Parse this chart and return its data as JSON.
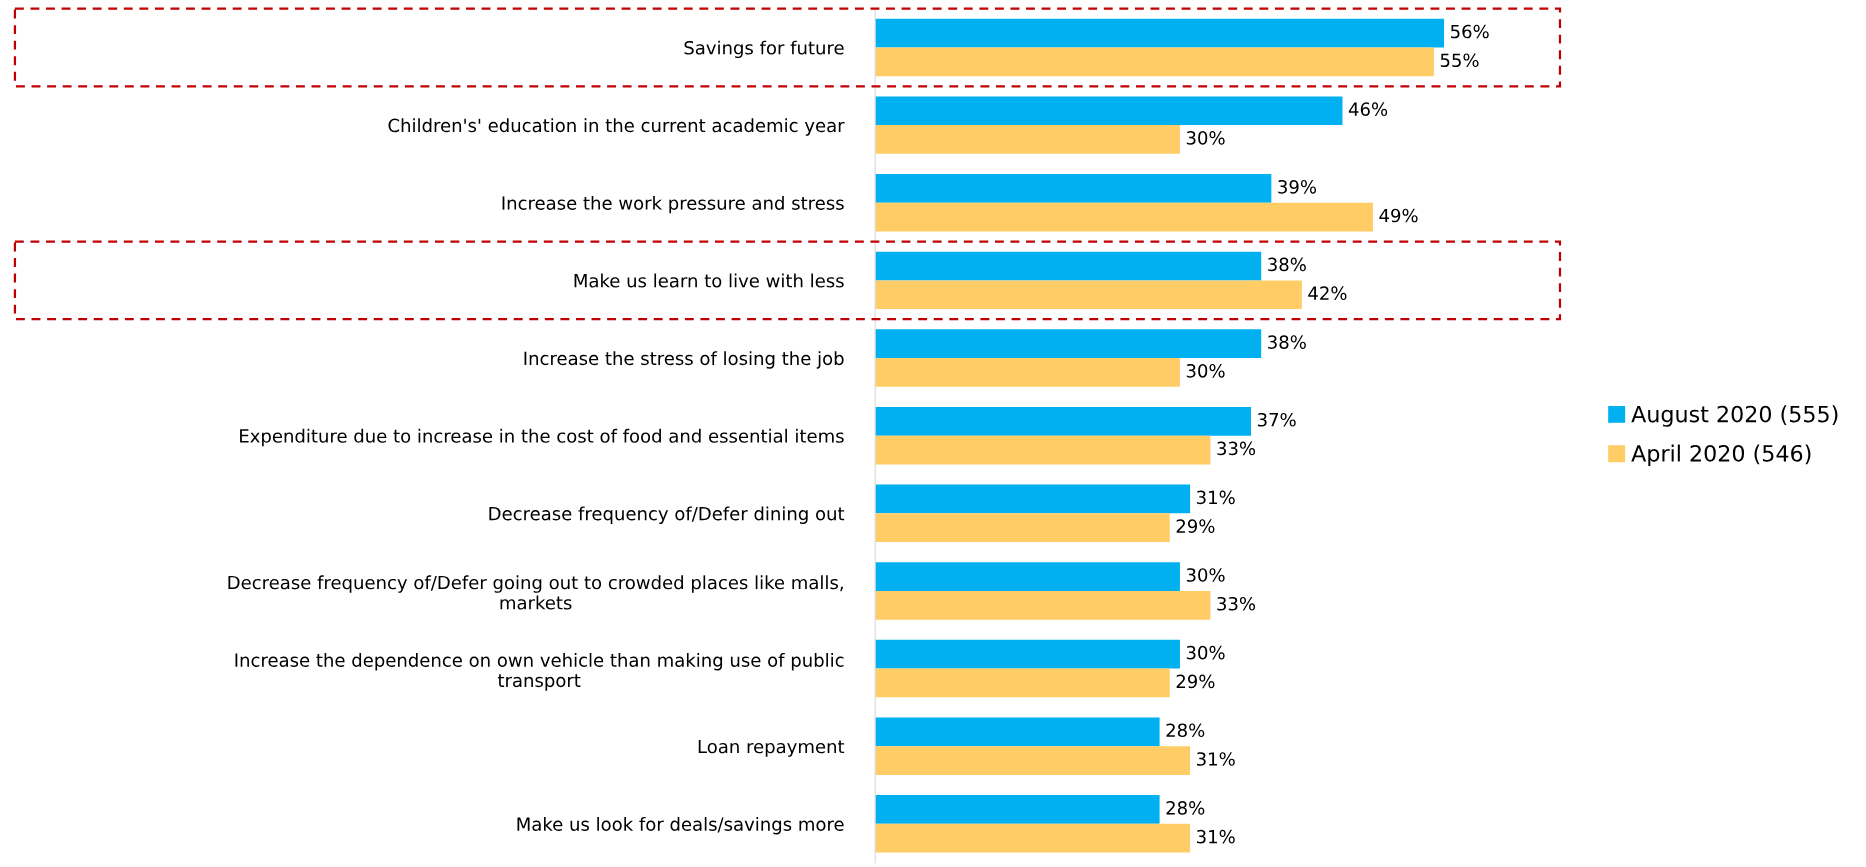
{
  "chart_data": {
    "type": "bar",
    "orientation": "horizontal",
    "categories": [
      "Savings for future",
      "Children's' education in the current academic year",
      "Increase the work pressure and stress",
      "Make us learn to live with less",
      "Increase the stress of losing the job",
      "Expenditure due to increase in the cost of food and essential items",
      "Decrease frequency of/Defer dining out",
      "Decrease frequency of/Defer going out to crowded places like malls, markets",
      "Increase the dependence on own vehicle than making use of public transport",
      "Loan repayment",
      "Make us look for deals/savings more"
    ],
    "series": [
      {
        "name": "August 2020 (555)",
        "color": "#00b0f0",
        "values": [
          56,
          46,
          39,
          38,
          38,
          37,
          31,
          30,
          30,
          28,
          28
        ],
        "value_labels": [
          "56%",
          "46%",
          "39%",
          "38%",
          "38%",
          "37%",
          "31%",
          "30%",
          "30%",
          "28%",
          "28%"
        ]
      },
      {
        "name": "April 2020 (546)",
        "color": "#ffcc66",
        "values": [
          55,
          30,
          49,
          42,
          30,
          33,
          29,
          33,
          29,
          31,
          31
        ],
        "value_labels": [
          "55%",
          "30%",
          "49%",
          "42%",
          "30%",
          "33%",
          "29%",
          "33%",
          "29%",
          "31%",
          "31%"
        ]
      }
    ],
    "tick_labels": "y",
    "grid": false,
    "legend": "right"
  }
}
